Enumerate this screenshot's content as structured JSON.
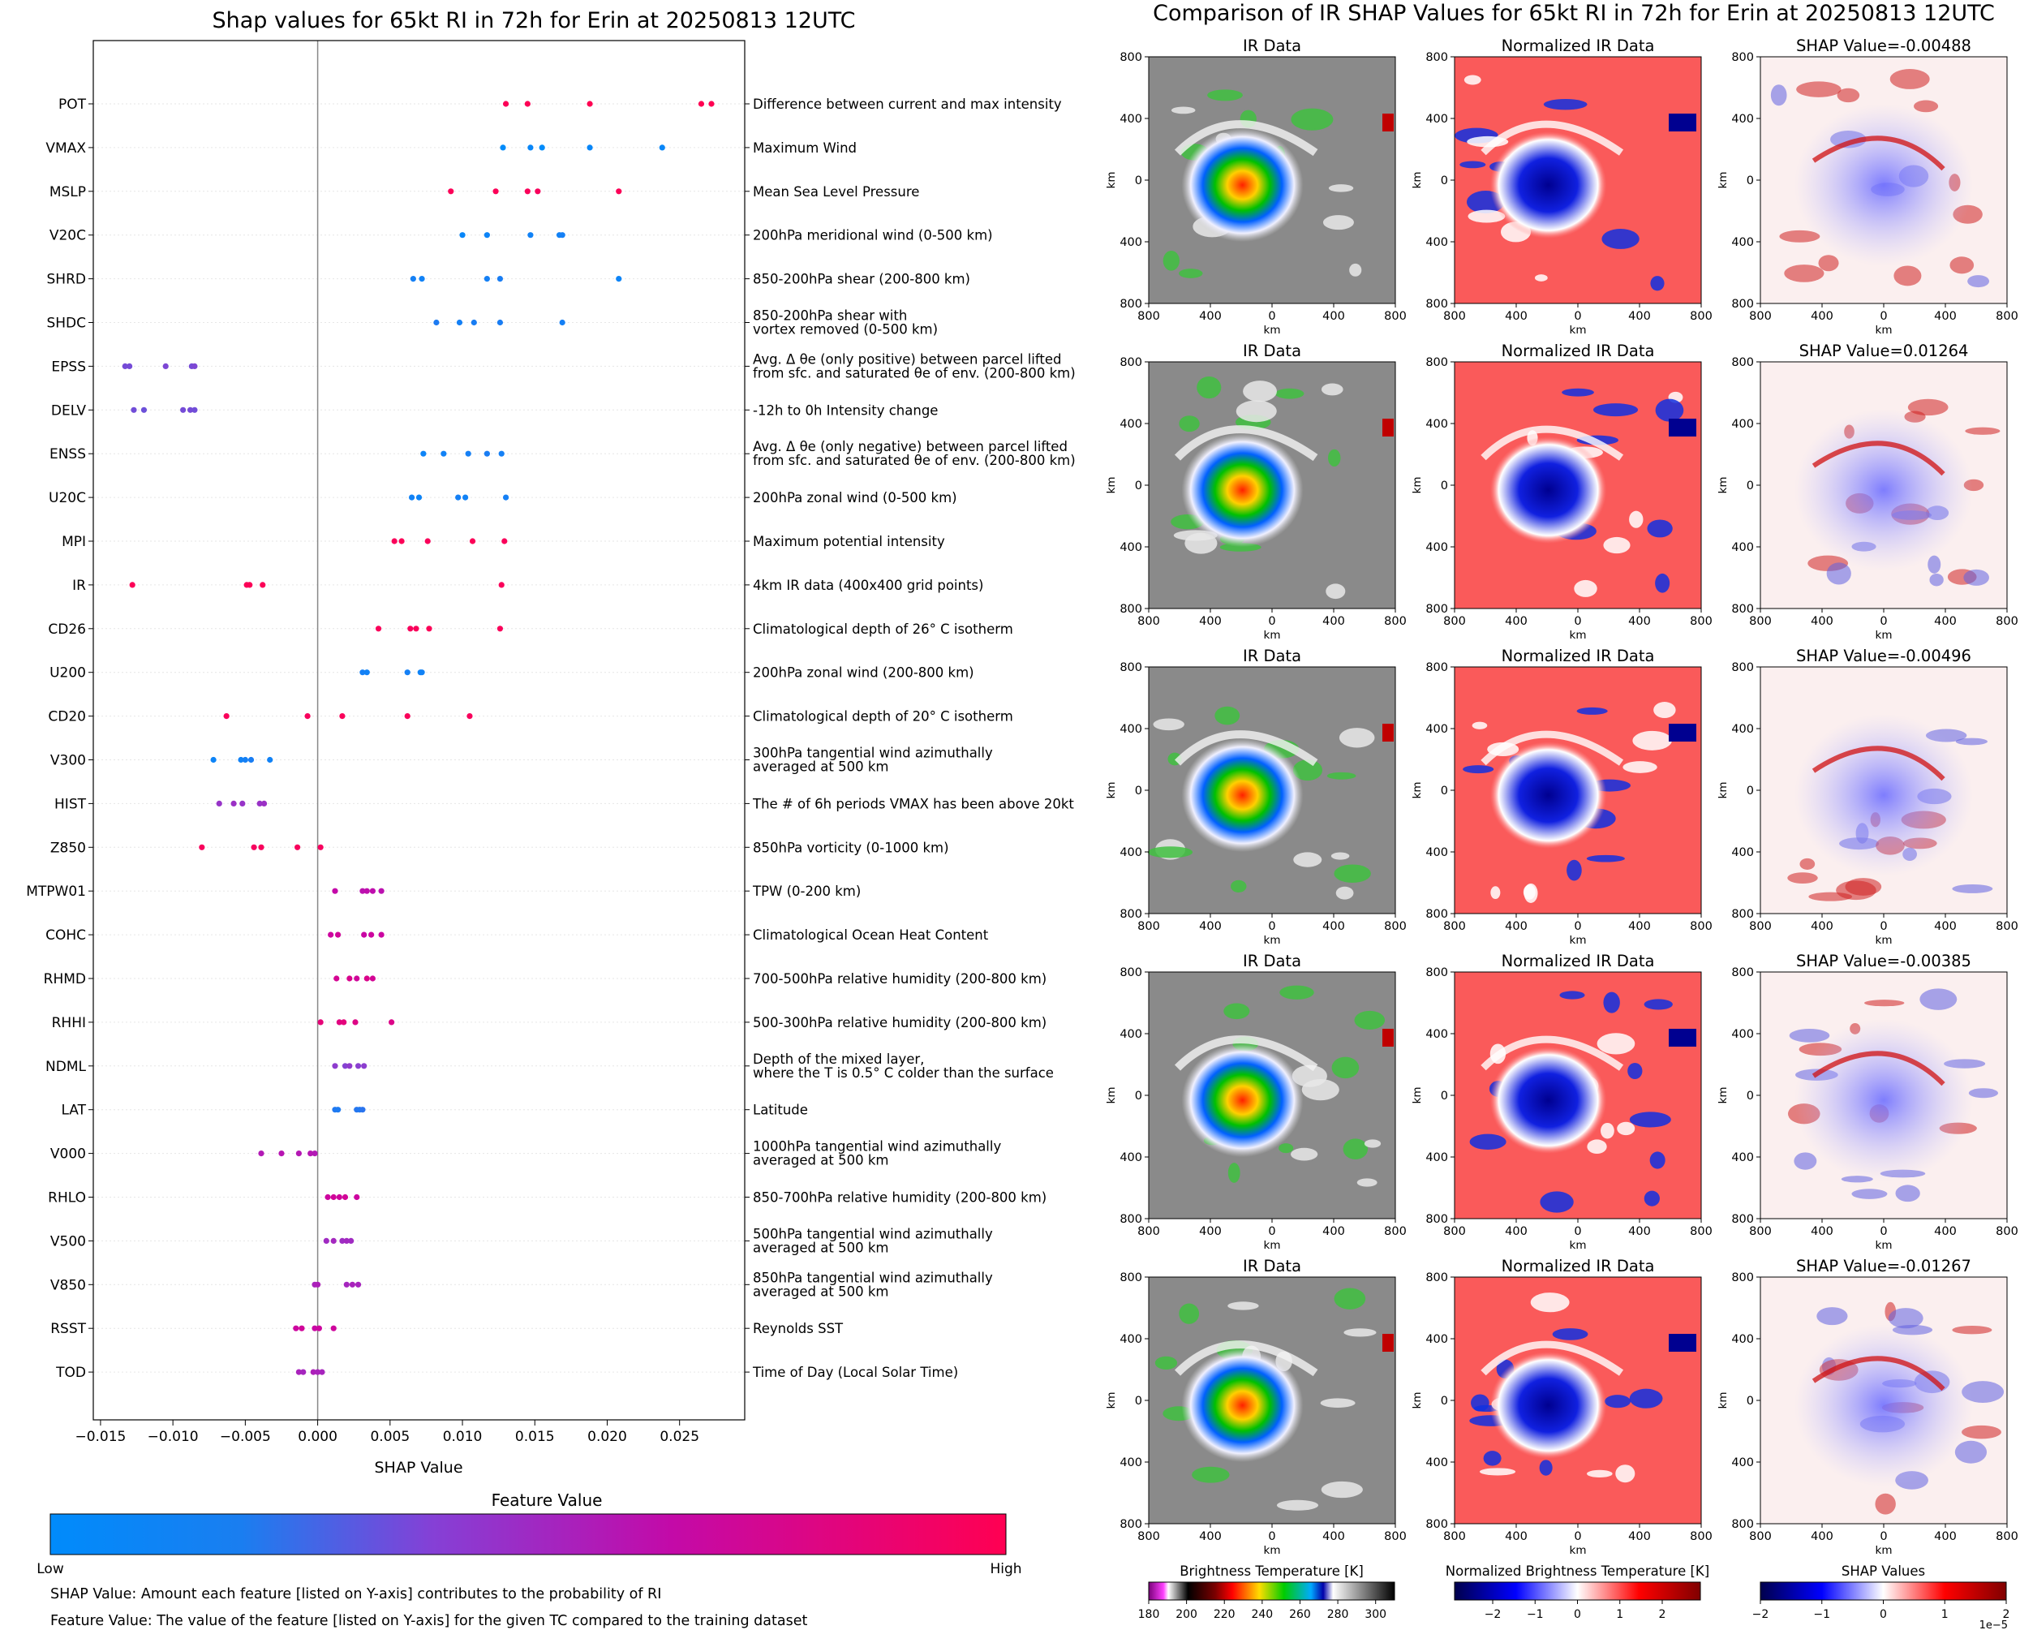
{
  "left_title": "Shap values for 65kt RI in 72h for Erin at 20250813 12UTC",
  "right_title": "Comparison of IR SHAP Values for 65kt RI in 72h for Erin at 20250813 12UTC",
  "chart_data": [
    {
      "type": "scatter",
      "title": "Shap values for 65kt RI in 72h for Erin at 20250813 12UTC",
      "xlabel": "SHAP Value",
      "xlim": [
        -0.0155,
        0.0295
      ],
      "xticks": [
        -0.015,
        -0.01,
        -0.005,
        0.0,
        0.005,
        0.01,
        0.015,
        0.02,
        0.025
      ],
      "xtick_labels": [
        "−0.015",
        "−0.010",
        "−0.005",
        "0.000",
        "0.005",
        "0.010",
        "0.015",
        "0.020",
        "0.025"
      ],
      "grid": "horizontal dotted",
      "colorbar": {
        "label": "Feature Value",
        "low": "Low",
        "high": "High",
        "colors": [
          "#008bfb",
          "#8b3fd0",
          "#c706a7",
          "#ff0052"
        ]
      },
      "features": [
        {
          "name": "POT",
          "desc": [
            "Difference between current and max intensity"
          ],
          "points": [
            [
              0.013,
              0.98
            ],
            [
              0.0145,
              0.99
            ],
            [
              0.0188,
              1.0
            ],
            [
              0.0265,
              1.0
            ],
            [
              0.0272,
              1.0
            ]
          ]
        },
        {
          "name": "VMAX",
          "desc": [
            "Maximum Wind"
          ],
          "points": [
            [
              0.0128,
              0.0
            ],
            [
              0.0147,
              0.02
            ],
            [
              0.0155,
              0.0
            ],
            [
              0.0188,
              0.02
            ],
            [
              0.0238,
              0.02
            ]
          ]
        },
        {
          "name": "MSLP",
          "desc": [
            "Mean Sea Level Pressure"
          ],
          "points": [
            [
              0.0092,
              0.98
            ],
            [
              0.0123,
              0.98
            ],
            [
              0.0145,
              0.97
            ],
            [
              0.0152,
              0.96
            ],
            [
              0.0208,
              0.98
            ]
          ]
        },
        {
          "name": "V20C",
          "desc": [
            "200hPa meridional wind (0-500 km)"
          ],
          "points": [
            [
              0.01,
              0.02
            ],
            [
              0.0117,
              0.03
            ],
            [
              0.0147,
              0.04
            ],
            [
              0.0167,
              0.04
            ],
            [
              0.0169,
              0.05
            ]
          ]
        },
        {
          "name": "SHRD",
          "desc": [
            "850-200hPa shear (200-800 km)"
          ],
          "points": [
            [
              0.0066,
              0.05
            ],
            [
              0.0072,
              0.04
            ],
            [
              0.0117,
              0.05
            ],
            [
              0.0126,
              0.06
            ],
            [
              0.0208,
              0.03
            ]
          ]
        },
        {
          "name": "SHDC",
          "desc": [
            "850-200hPa shear with",
            "vortex removed (0-500 km)"
          ],
          "points": [
            [
              0.0082,
              0.07
            ],
            [
              0.0098,
              0.05
            ],
            [
              0.0108,
              0.06
            ],
            [
              0.0126,
              0.06
            ],
            [
              0.0169,
              0.05
            ]
          ]
        },
        {
          "name": "EPSS",
          "desc": [
            "Avg. Δ θe (only positive) between parcel lifted",
            "from sfc. and saturated θe of env. (200-800 km)"
          ],
          "points": [
            [
              -0.0133,
              0.28
            ],
            [
              -0.013,
              0.28
            ],
            [
              -0.0105,
              0.3
            ],
            [
              -0.0087,
              0.28
            ],
            [
              -0.0085,
              0.3
            ]
          ]
        },
        {
          "name": "DELV",
          "desc": [
            "-12h to 0h Intensity change"
          ],
          "points": [
            [
              -0.0127,
              0.27
            ],
            [
              -0.012,
              0.26
            ],
            [
              -0.0093,
              0.28
            ],
            [
              -0.0088,
              0.28
            ],
            [
              -0.0085,
              0.27
            ]
          ]
        },
        {
          "name": "ENSS",
          "desc": [
            "Avg. Δ θe (only negative) between parcel lifted",
            "from sfc. and saturated θe of env. (200-800 km)"
          ],
          "points": [
            [
              0.0073,
              0.03
            ],
            [
              0.0087,
              0.04
            ],
            [
              0.0104,
              0.05
            ],
            [
              0.0117,
              0.06
            ],
            [
              0.0127,
              0.05
            ]
          ]
        },
        {
          "name": "U20C",
          "desc": [
            "200hPa zonal wind (0-500 km)"
          ],
          "points": [
            [
              0.0065,
              0.04
            ],
            [
              0.007,
              0.03
            ],
            [
              0.0097,
              0.05
            ],
            [
              0.0102,
              0.04
            ],
            [
              0.013,
              0.05
            ]
          ]
        },
        {
          "name": "MPI",
          "desc": [
            "Maximum potential intensity"
          ],
          "points": [
            [
              0.0053,
              0.97
            ],
            [
              0.0058,
              0.98
            ],
            [
              0.0076,
              0.97
            ],
            [
              0.0107,
              0.98
            ],
            [
              0.0129,
              0.97
            ]
          ]
        },
        {
          "name": "IR",
          "desc": [
            "4km IR data (400x400 grid points)"
          ],
          "points": [
            [
              -0.0128,
              0.98
            ],
            [
              -0.0049,
              0.98
            ],
            [
              -0.0047,
              0.98
            ],
            [
              -0.0038,
              0.98
            ],
            [
              0.0127,
              0.97
            ]
          ]
        },
        {
          "name": "CD26",
          "desc": [
            "Climatological depth of 26° C isotherm"
          ],
          "points": [
            [
              0.0042,
              0.97
            ],
            [
              0.0064,
              0.96
            ],
            [
              0.0068,
              0.97
            ],
            [
              0.0077,
              0.98
            ],
            [
              0.0126,
              0.97
            ]
          ]
        },
        {
          "name": "U200",
          "desc": [
            "200hPa zonal wind (200-800 km)"
          ],
          "points": [
            [
              0.0031,
              0.05
            ],
            [
              0.0034,
              0.04
            ],
            [
              0.0062,
              0.05
            ],
            [
              0.0071,
              0.03
            ],
            [
              0.0072,
              0.04
            ]
          ]
        },
        {
          "name": "CD20",
          "desc": [
            "Climatological depth of 20° C isotherm"
          ],
          "points": [
            [
              -0.0063,
              0.97
            ],
            [
              -0.0007,
              0.96
            ],
            [
              0.0017,
              0.97
            ],
            [
              0.0062,
              0.97
            ],
            [
              0.0105,
              0.96
            ]
          ]
        },
        {
          "name": "V300",
          "desc": [
            "300hPa tangential wind azimuthally",
            "averaged at 500 km"
          ],
          "points": [
            [
              -0.0072,
              0.03
            ],
            [
              -0.0053,
              0.04
            ],
            [
              -0.005,
              0.05
            ],
            [
              -0.0046,
              0.06
            ],
            [
              -0.0033,
              0.04
            ]
          ]
        },
        {
          "name": "HIST",
          "desc": [
            "The # of 6h periods VMAX has been above 20kt"
          ],
          "points": [
            [
              -0.0068,
              0.4
            ],
            [
              -0.0058,
              0.42
            ],
            [
              -0.0052,
              0.4
            ],
            [
              -0.004,
              0.41
            ],
            [
              -0.0037,
              0.42
            ]
          ]
        },
        {
          "name": "Z850",
          "desc": [
            "850hPa vorticity (0-1000 km)"
          ],
          "points": [
            [
              -0.008,
              0.96
            ],
            [
              -0.0044,
              0.95
            ],
            [
              -0.0039,
              0.96
            ],
            [
              -0.0014,
              0.96
            ],
            [
              0.0002,
              0.95
            ]
          ]
        },
        {
          "name": "MTPW01",
          "desc": [
            "TPW (0-200 km)"
          ],
          "points": [
            [
              0.0012,
              0.65
            ],
            [
              0.0031,
              0.6
            ],
            [
              0.0034,
              0.62
            ],
            [
              0.0038,
              0.62
            ],
            [
              0.0044,
              0.6
            ]
          ]
        },
        {
          "name": "COHC",
          "desc": [
            "Climatological Ocean Heat Content"
          ],
          "points": [
            [
              0.0009,
              0.7
            ],
            [
              0.0014,
              0.72
            ],
            [
              0.0032,
              0.68
            ],
            [
              0.0037,
              0.7
            ],
            [
              0.0044,
              0.69
            ]
          ]
        },
        {
          "name": "RHMD",
          "desc": [
            "700-500hPa relative humidity (200-800 km)"
          ],
          "points": [
            [
              0.0013,
              0.75
            ],
            [
              0.0022,
              0.77
            ],
            [
              0.0027,
              0.72
            ],
            [
              0.0034,
              0.78
            ],
            [
              0.0038,
              0.74
            ]
          ]
        },
        {
          "name": "RHHI",
          "desc": [
            "500-300hPa relative humidity (200-800 km)"
          ],
          "points": [
            [
              0.0002,
              0.85
            ],
            [
              0.0015,
              0.82
            ],
            [
              0.0018,
              0.84
            ],
            [
              0.0026,
              0.8
            ],
            [
              0.0051,
              0.79
            ]
          ]
        },
        {
          "name": "NDML",
          "desc": [
            "Depth of the mixed layer,",
            "where the T is 0.5° C colder than the surface"
          ],
          "points": [
            [
              0.0012,
              0.35
            ],
            [
              0.0019,
              0.32
            ],
            [
              0.0022,
              0.36
            ],
            [
              0.0028,
              0.33
            ],
            [
              0.0032,
              0.34
            ]
          ]
        },
        {
          "name": "LAT",
          "desc": [
            "Latitude"
          ],
          "points": [
            [
              0.0012,
              0.08
            ],
            [
              0.0014,
              0.07
            ],
            [
              0.0027,
              0.09
            ],
            [
              0.0029,
              0.08
            ],
            [
              0.0031,
              0.1
            ]
          ]
        },
        {
          "name": "V000",
          "desc": [
            "1000hPa tangential wind azimuthally",
            "averaged at 500 km"
          ],
          "points": [
            [
              -0.0039,
              0.55
            ],
            [
              -0.0025,
              0.58
            ],
            [
              -0.0013,
              0.56
            ],
            [
              -0.0005,
              0.57
            ],
            [
              -0.0002,
              0.55
            ]
          ]
        },
        {
          "name": "RHLO",
          "desc": [
            "850-700hPa relative humidity (200-800 km)"
          ],
          "points": [
            [
              0.0007,
              0.7
            ],
            [
              0.0011,
              0.72
            ],
            [
              0.0015,
              0.71
            ],
            [
              0.0019,
              0.73
            ],
            [
              0.0027,
              0.7
            ]
          ]
        },
        {
          "name": "V500",
          "desc": [
            "500hPa tangential wind azimuthally",
            "averaged at 500 km"
          ],
          "points": [
            [
              0.0006,
              0.45
            ],
            [
              0.0011,
              0.47
            ],
            [
              0.0017,
              0.44
            ],
            [
              0.002,
              0.46
            ],
            [
              0.0023,
              0.45
            ]
          ]
        },
        {
          "name": "V850",
          "desc": [
            "850hPa tangential wind azimuthally",
            "averaged at 500 km"
          ],
          "points": [
            [
              -0.0002,
              0.5
            ],
            [
              0.0,
              0.52
            ],
            [
              0.002,
              0.48
            ],
            [
              0.0024,
              0.5
            ],
            [
              0.0028,
              0.49
            ]
          ]
        },
        {
          "name": "RSST",
          "desc": [
            "Reynolds SST"
          ],
          "points": [
            [
              -0.0015,
              0.7
            ],
            [
              -0.0011,
              0.72
            ],
            [
              -0.0002,
              0.68
            ],
            [
              0.0001,
              0.7
            ],
            [
              0.0011,
              0.71
            ]
          ]
        },
        {
          "name": "TOD",
          "desc": [
            "Time of Day (Local Solar Time)"
          ],
          "points": [
            [
              -0.0013,
              0.5
            ],
            [
              -0.001,
              0.48
            ],
            [
              -0.0003,
              0.52
            ],
            [
              0.0,
              0.5
            ],
            [
              0.0003,
              0.49
            ]
          ]
        }
      ]
    },
    {
      "type": "heatmap",
      "title": "Comparison of IR SHAP Values for 65kt RI in 72h for Erin at 20250813 12UTC",
      "column_titles": [
        "IR Data",
        "Normalized IR Data"
      ],
      "shap_titles": [
        "SHAP Value=-0.00488",
        "SHAP Value=0.01264",
        "SHAP Value=-0.00496",
        "SHAP Value=-0.00385",
        "SHAP Value=-0.01267"
      ],
      "axis_label": "km",
      "tick_labels": [
        "800",
        "400",
        "0",
        "400",
        "800"
      ],
      "colorbars": [
        {
          "label": "Brightness Temperature [K]",
          "ticks": [
            "180",
            "200",
            "220",
            "240",
            "260",
            "280",
            "300"
          ],
          "range": [
            180,
            310
          ]
        },
        {
          "label": "Normalized Brightness Temperature [K]",
          "ticks": [
            "−2",
            "−1",
            "0",
            "1",
            "2"
          ],
          "range": [
            -2.9,
            2.9
          ]
        },
        {
          "label": "SHAP Values",
          "ticks": [
            "−2",
            "−1",
            "0",
            "1",
            "2"
          ],
          "range": [
            -2,
            2
          ],
          "multiplier": "1e−5"
        }
      ]
    }
  ],
  "notes": [
    "SHAP Value: Amount each feature [listed on Y-axis] contributes to the probability of RI",
    "Feature Value: The value of the feature [listed on Y-axis] for the given TC compared to the training dataset"
  ],
  "colors": {
    "low": "#008bfb",
    "high": "#ff0052",
    "axis": "#000000",
    "grid": "#e6e6e6"
  }
}
